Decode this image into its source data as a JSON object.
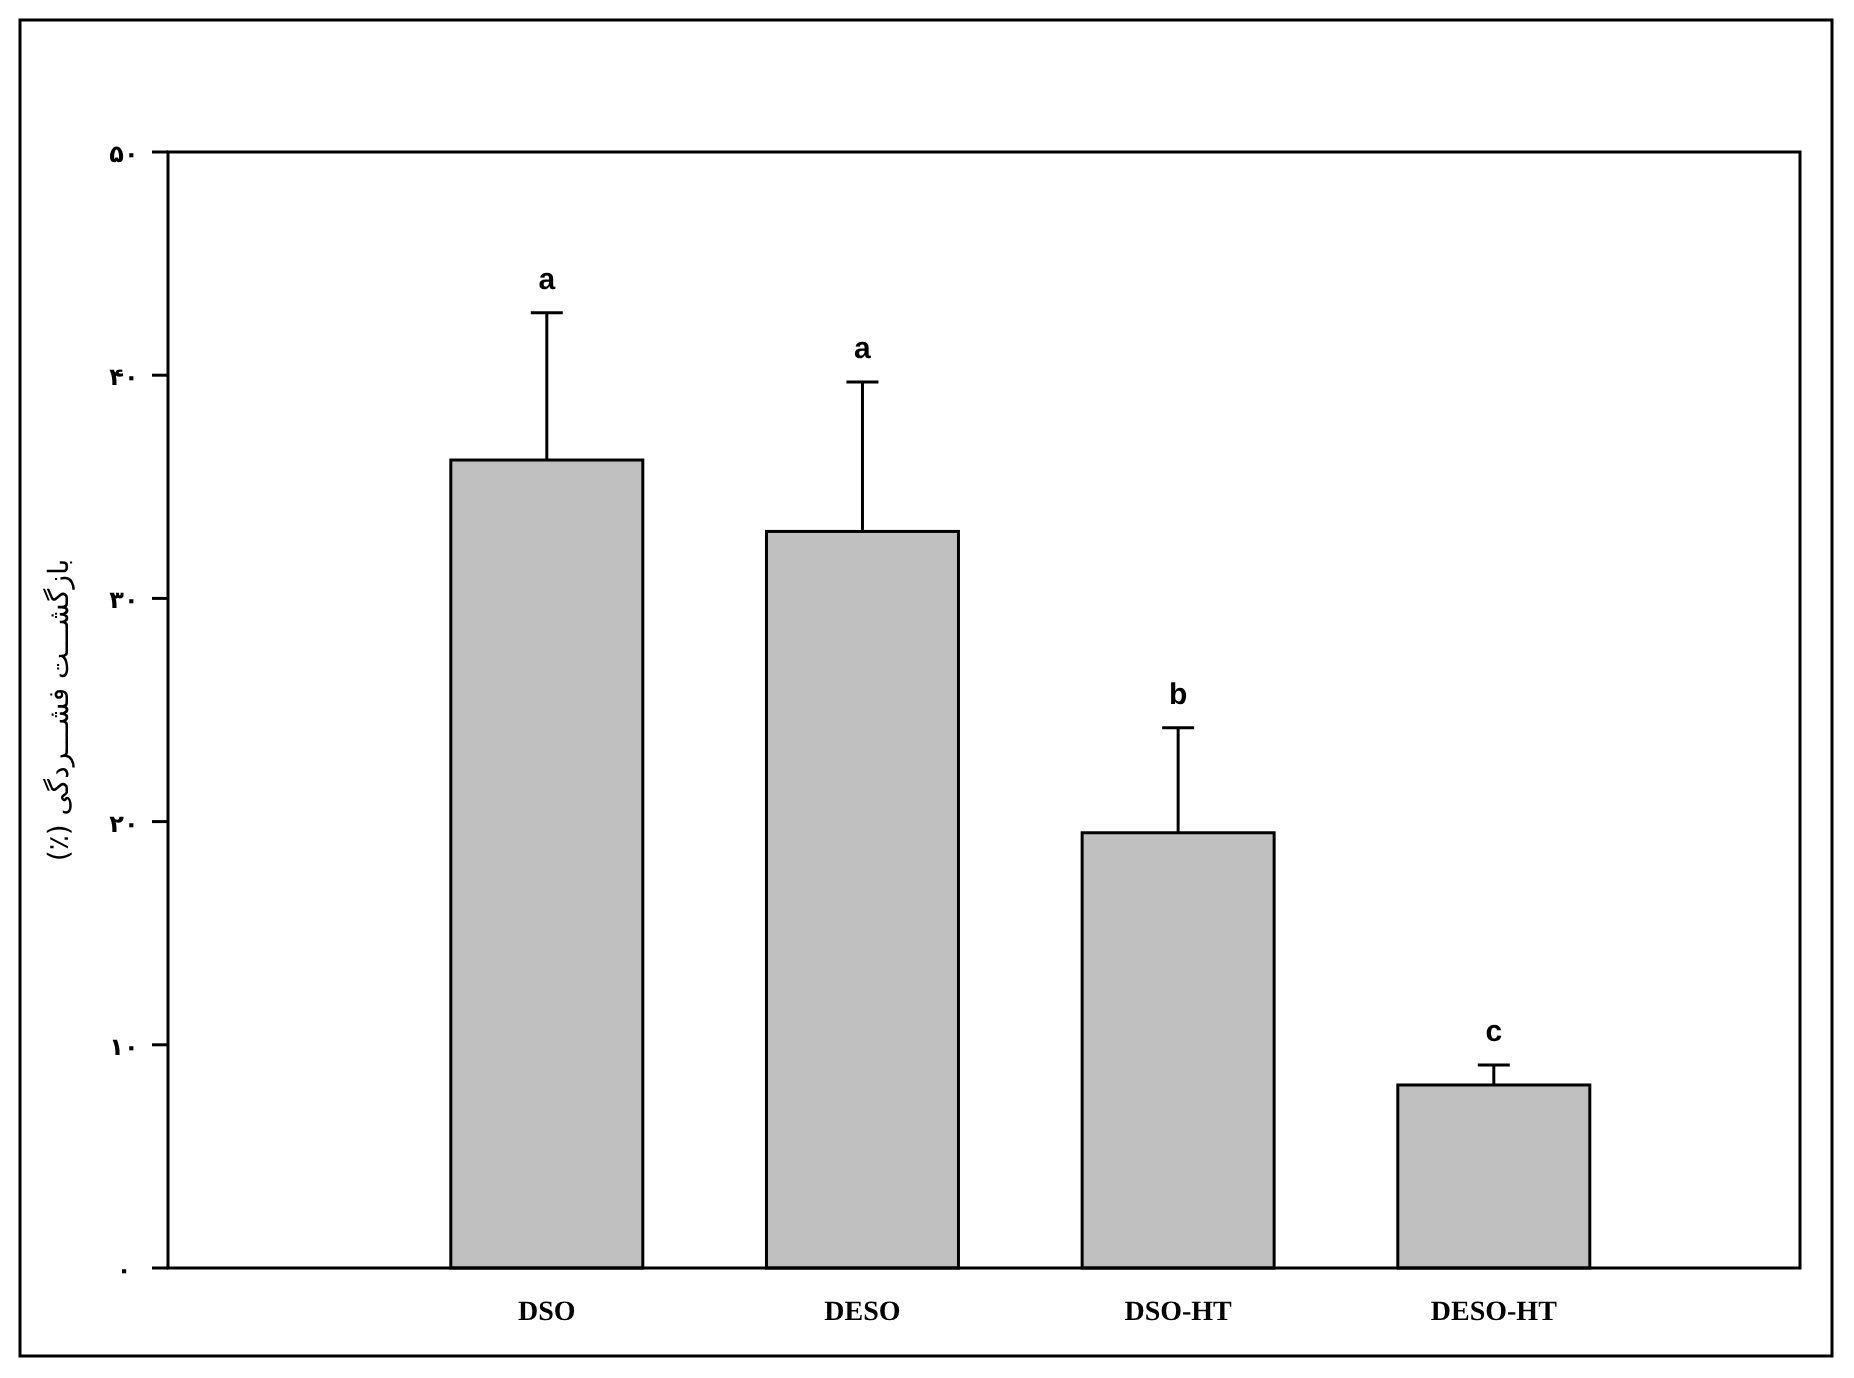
{
  "chart_data": {
    "type": "bar",
    "ylabel": "بازگشـــت فشـــردگی (٪)",
    "categories": [
      "DSO",
      "DESO",
      "DSO-HT",
      "DESO-HT"
    ],
    "values": [
      36.2,
      33.0,
      19.5,
      8.2
    ],
    "errors": [
      [
        36.2,
        42.8
      ],
      [
        33.0,
        39.7
      ],
      [
        19.5,
        24.2
      ],
      [
        8.2,
        9.1
      ]
    ],
    "color": "#c0c0c0",
    "ylim": [
      0,
      50
    ],
    "yticks": [
      {
        "value": 0,
        "label": "۰"
      },
      {
        "value": 10,
        "label": "۱۰"
      },
      {
        "value": 20,
        "label": "۲۰"
      },
      {
        "value": 30,
        "label": "۳۰"
      },
      {
        "value": 40,
        "label": "۴۰"
      },
      {
        "value": 50,
        "label": "۵۰"
      }
    ],
    "annotations": [
      {
        "text": "a",
        "x": "DSO",
        "y": 42.8
      },
      {
        "text": "a",
        "x": "DESO",
        "y": 39.7
      },
      {
        "text": "b",
        "x": "DSO-HT",
        "y": 24.2
      },
      {
        "text": "c",
        "x": "DESO-HT",
        "y": 9.1
      }
    ],
    "grid": false
  }
}
